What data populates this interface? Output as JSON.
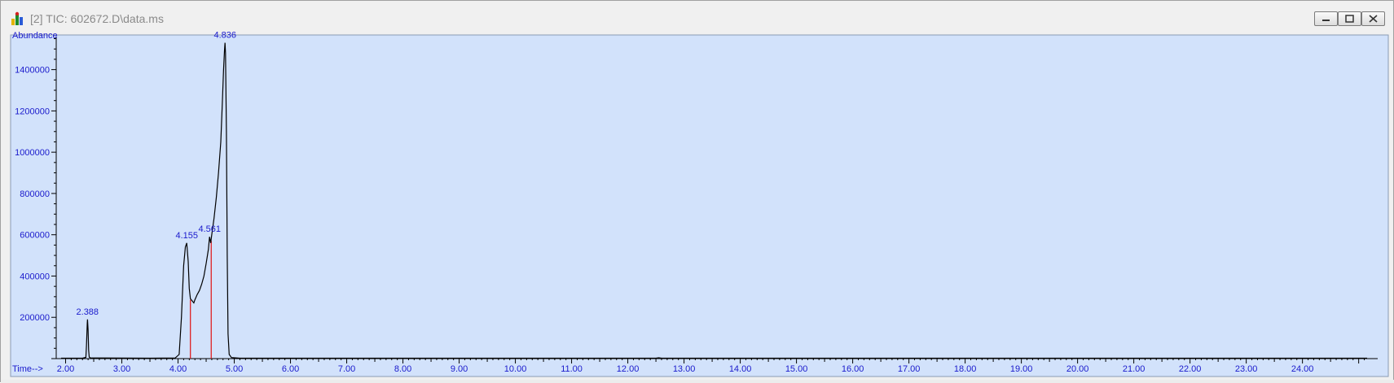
{
  "window": {
    "title": "[2] TIC: 602672.D\\data.ms",
    "icon": "chromatogram-app-icon",
    "buttons": [
      "minimize",
      "restore",
      "close"
    ]
  },
  "colors": {
    "plot_background": "#d2e2fb",
    "trace": "#000000",
    "axis_text": "#1a1acc",
    "peak_label": "#1a1acc",
    "integration_line": "#e01010"
  },
  "chart_data": {
    "type": "line",
    "xlabel": "Time-->",
    "ylabel": "Abundance",
    "xlim": [
      1.92,
      25.15
    ],
    "ylim": [
      0,
      1560000
    ],
    "x_ticks": [
      "2.00",
      "3.00",
      "4.00",
      "5.00",
      "6.00",
      "7.00",
      "8.00",
      "9.00",
      "10.00",
      "11.00",
      "12.00",
      "13.00",
      "14.00",
      "15.00",
      "16.00",
      "17.00",
      "18.00",
      "19.00",
      "20.00",
      "21.00",
      "22.00",
      "23.00",
      "24.00"
    ],
    "y_ticks": [
      "200000",
      "400000",
      "600000",
      "800000",
      "1000000",
      "1200000",
      "1400000"
    ],
    "grid": false,
    "series": [
      {
        "points": [
          [
            1.92,
            2000
          ],
          [
            2.3,
            2000
          ],
          [
            2.36,
            6000
          ],
          [
            2.37,
            60000
          ],
          [
            2.385,
            170000
          ],
          [
            2.39,
            190000
          ],
          [
            2.4,
            140000
          ],
          [
            2.41,
            40000
          ],
          [
            2.42,
            8000
          ],
          [
            2.44,
            3000
          ],
          [
            3.5,
            2000
          ],
          [
            3.95,
            3000
          ],
          [
            4.02,
            20000
          ],
          [
            4.06,
            200000
          ],
          [
            4.1,
            450000
          ],
          [
            4.13,
            540000
          ],
          [
            4.155,
            560000
          ],
          [
            4.18,
            470000
          ],
          [
            4.2,
            340000
          ],
          [
            4.22,
            290000
          ],
          [
            4.25,
            280000
          ],
          [
            4.28,
            270000
          ],
          [
            4.3,
            285000
          ],
          [
            4.34,
            310000
          ],
          [
            4.38,
            330000
          ],
          [
            4.42,
            360000
          ],
          [
            4.46,
            400000
          ],
          [
            4.5,
            460000
          ],
          [
            4.54,
            530000
          ],
          [
            4.561,
            590000
          ],
          [
            4.58,
            560000
          ],
          [
            4.6,
            600000
          ],
          [
            4.64,
            680000
          ],
          [
            4.68,
            780000
          ],
          [
            4.72,
            900000
          ],
          [
            4.76,
            1050000
          ],
          [
            4.79,
            1250000
          ],
          [
            4.81,
            1400000
          ],
          [
            4.825,
            1490000
          ],
          [
            4.836,
            1530000
          ],
          [
            4.845,
            1480000
          ],
          [
            4.86,
            1100000
          ],
          [
            4.875,
            500000
          ],
          [
            4.89,
            120000
          ],
          [
            4.91,
            20000
          ],
          [
            4.95,
            5000
          ],
          [
            5.1,
            2000
          ],
          [
            12.5,
            2000
          ],
          [
            12.55,
            4000
          ],
          [
            12.6,
            2000
          ],
          [
            25.15,
            2000
          ]
        ]
      }
    ],
    "peak_labels": [
      {
        "x": 2.388,
        "y": 190000,
        "text": "2.388"
      },
      {
        "x": 4.155,
        "y": 560000,
        "text": "4.155"
      },
      {
        "x": 4.561,
        "y": 590000,
        "text": "4.561"
      },
      {
        "x": 4.836,
        "y": 1530000,
        "text": "4.836"
      }
    ],
    "integration_lines": [
      {
        "x": 2.4,
        "y": 0
      },
      {
        "x": 4.22,
        "y": 285000
      },
      {
        "x": 4.59,
        "y": 570000
      }
    ]
  }
}
